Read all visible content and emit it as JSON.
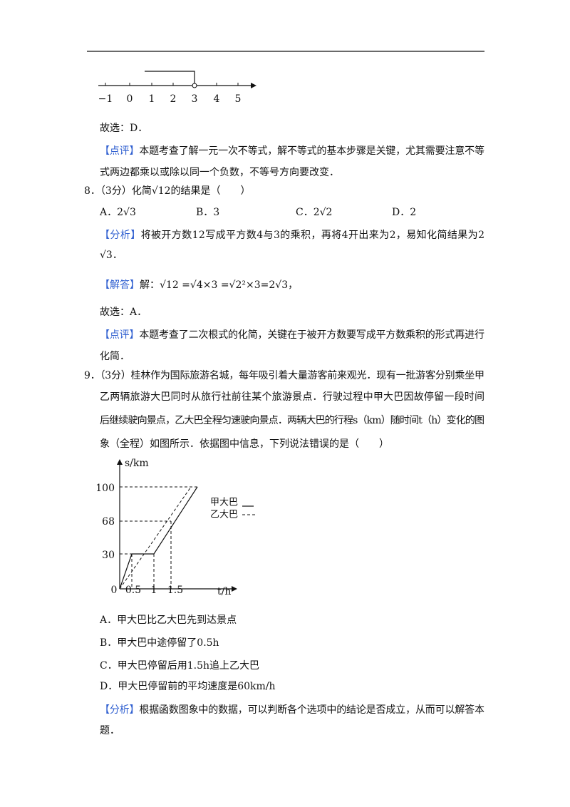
{
  "number_line": {
    "labels": [
      "−1",
      "0",
      "1",
      "2",
      "3",
      "4",
      "5"
    ]
  },
  "q7": {
    "answer": "故选：D．",
    "comment": {
      "tag": "【点评】",
      "lines": [
        "本题考查了解一元一次不等式，解不等式的基本步骤是关键，尤其需要注意不等",
        "式两边都乘以或除以同一个负数，不等号方向要改变．"
      ]
    }
  },
  "q8": {
    "stem": "8．（3分）化简√12的结果是（　　）",
    "options": [
      "A．2√3",
      "B．3",
      "C．2√2",
      "D．2"
    ],
    "analysis": {
      "tag": "【分析】",
      "lines": [
        "将被开方数12写成平方数4与3的乘积，再将4开出来为2，易知化简结果为2",
        "√3．"
      ]
    },
    "solution": {
      "tag": "【解答】",
      "text": "解：√12 =√4×3 =√2²×3=2√3，"
    },
    "answer": "故选：A．",
    "comment": {
      "tag": "【点评】",
      "lines": [
        "本题考查了二次根式的化简，关键在于被开方数要写成平方数乘积的形式再进行",
        "化简．"
      ]
    }
  },
  "q9": {
    "stem": [
      "9．（3分）桂林作为国际旅游名城，每年吸引着大量游客前来观光．现有一批游客分别乘坐甲",
      "乙两辆旅游大巴同时从旅行社前往某个旅游景点．行驶过程中甲大巴因故停留一段时间",
      "后继续驶向景点，乙大巴全程匀速驶向景点．两辆大巴的行程s（km）随时间t（h）变化的图",
      "象（全程）如图所示．依据图中信息，下列说法错误的是（　　）"
    ],
    "graph": {
      "y_label": "s/km",
      "x_label": "t/h",
      "y_ticks": [
        "100",
        "68",
        "30"
      ],
      "x_ticks": [
        "0",
        "0.5",
        "1",
        "1.5"
      ],
      "legend": [
        "甲大巴",
        "乙大巴"
      ]
    },
    "options": [
      "A．甲大巴比乙大巴先到达景点",
      "B．甲大巴中途停留了0.5h",
      "C．甲大巴停留后用1.5h追上乙大巴",
      "D．甲大巴停留前的平均速度是60km/h"
    ],
    "analysis": {
      "tag": "【分析】",
      "lines": [
        "根据函数图象中的数据，可以判断各个选项中的结论是否成立，从而可以解答本",
        "题．"
      ]
    }
  }
}
